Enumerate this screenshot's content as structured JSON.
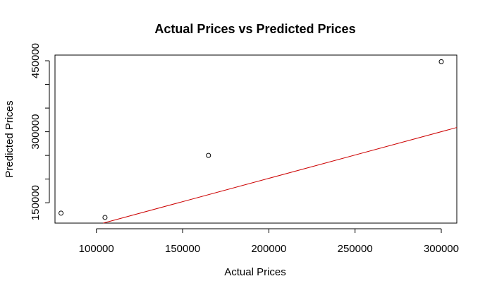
{
  "chart_data": {
    "type": "scatter",
    "title": "Actual Prices vs Predicted Prices",
    "xlabel": "Actual Prices",
    "ylabel": "Predicted Prices",
    "xlim": [
      76000,
      309000
    ],
    "ylim": [
      107000,
      462000
    ],
    "x_ticks": [
      100000,
      150000,
      200000,
      250000,
      300000
    ],
    "x_tick_labels": [
      "100000",
      "150000",
      "200000",
      "250000",
      "300000"
    ],
    "y_ticks": [
      150000,
      200000,
      250000,
      300000,
      350000,
      400000,
      450000
    ],
    "y_tick_labels": [
      "150000",
      "",
      "",
      "300000",
      "",
      "",
      "450000"
    ],
    "grid": false,
    "points": [
      {
        "x": 79500,
        "y": 128000
      },
      {
        "x": 105000,
        "y": 119000
      },
      {
        "x": 165000,
        "y": 250000
      },
      {
        "x": 300000,
        "y": 448000
      }
    ],
    "reference_line": {
      "from": [
        104000,
        107000
      ],
      "to": [
        309000,
        309000
      ],
      "color": "#cc0000"
    },
    "point_color": "#000000"
  }
}
